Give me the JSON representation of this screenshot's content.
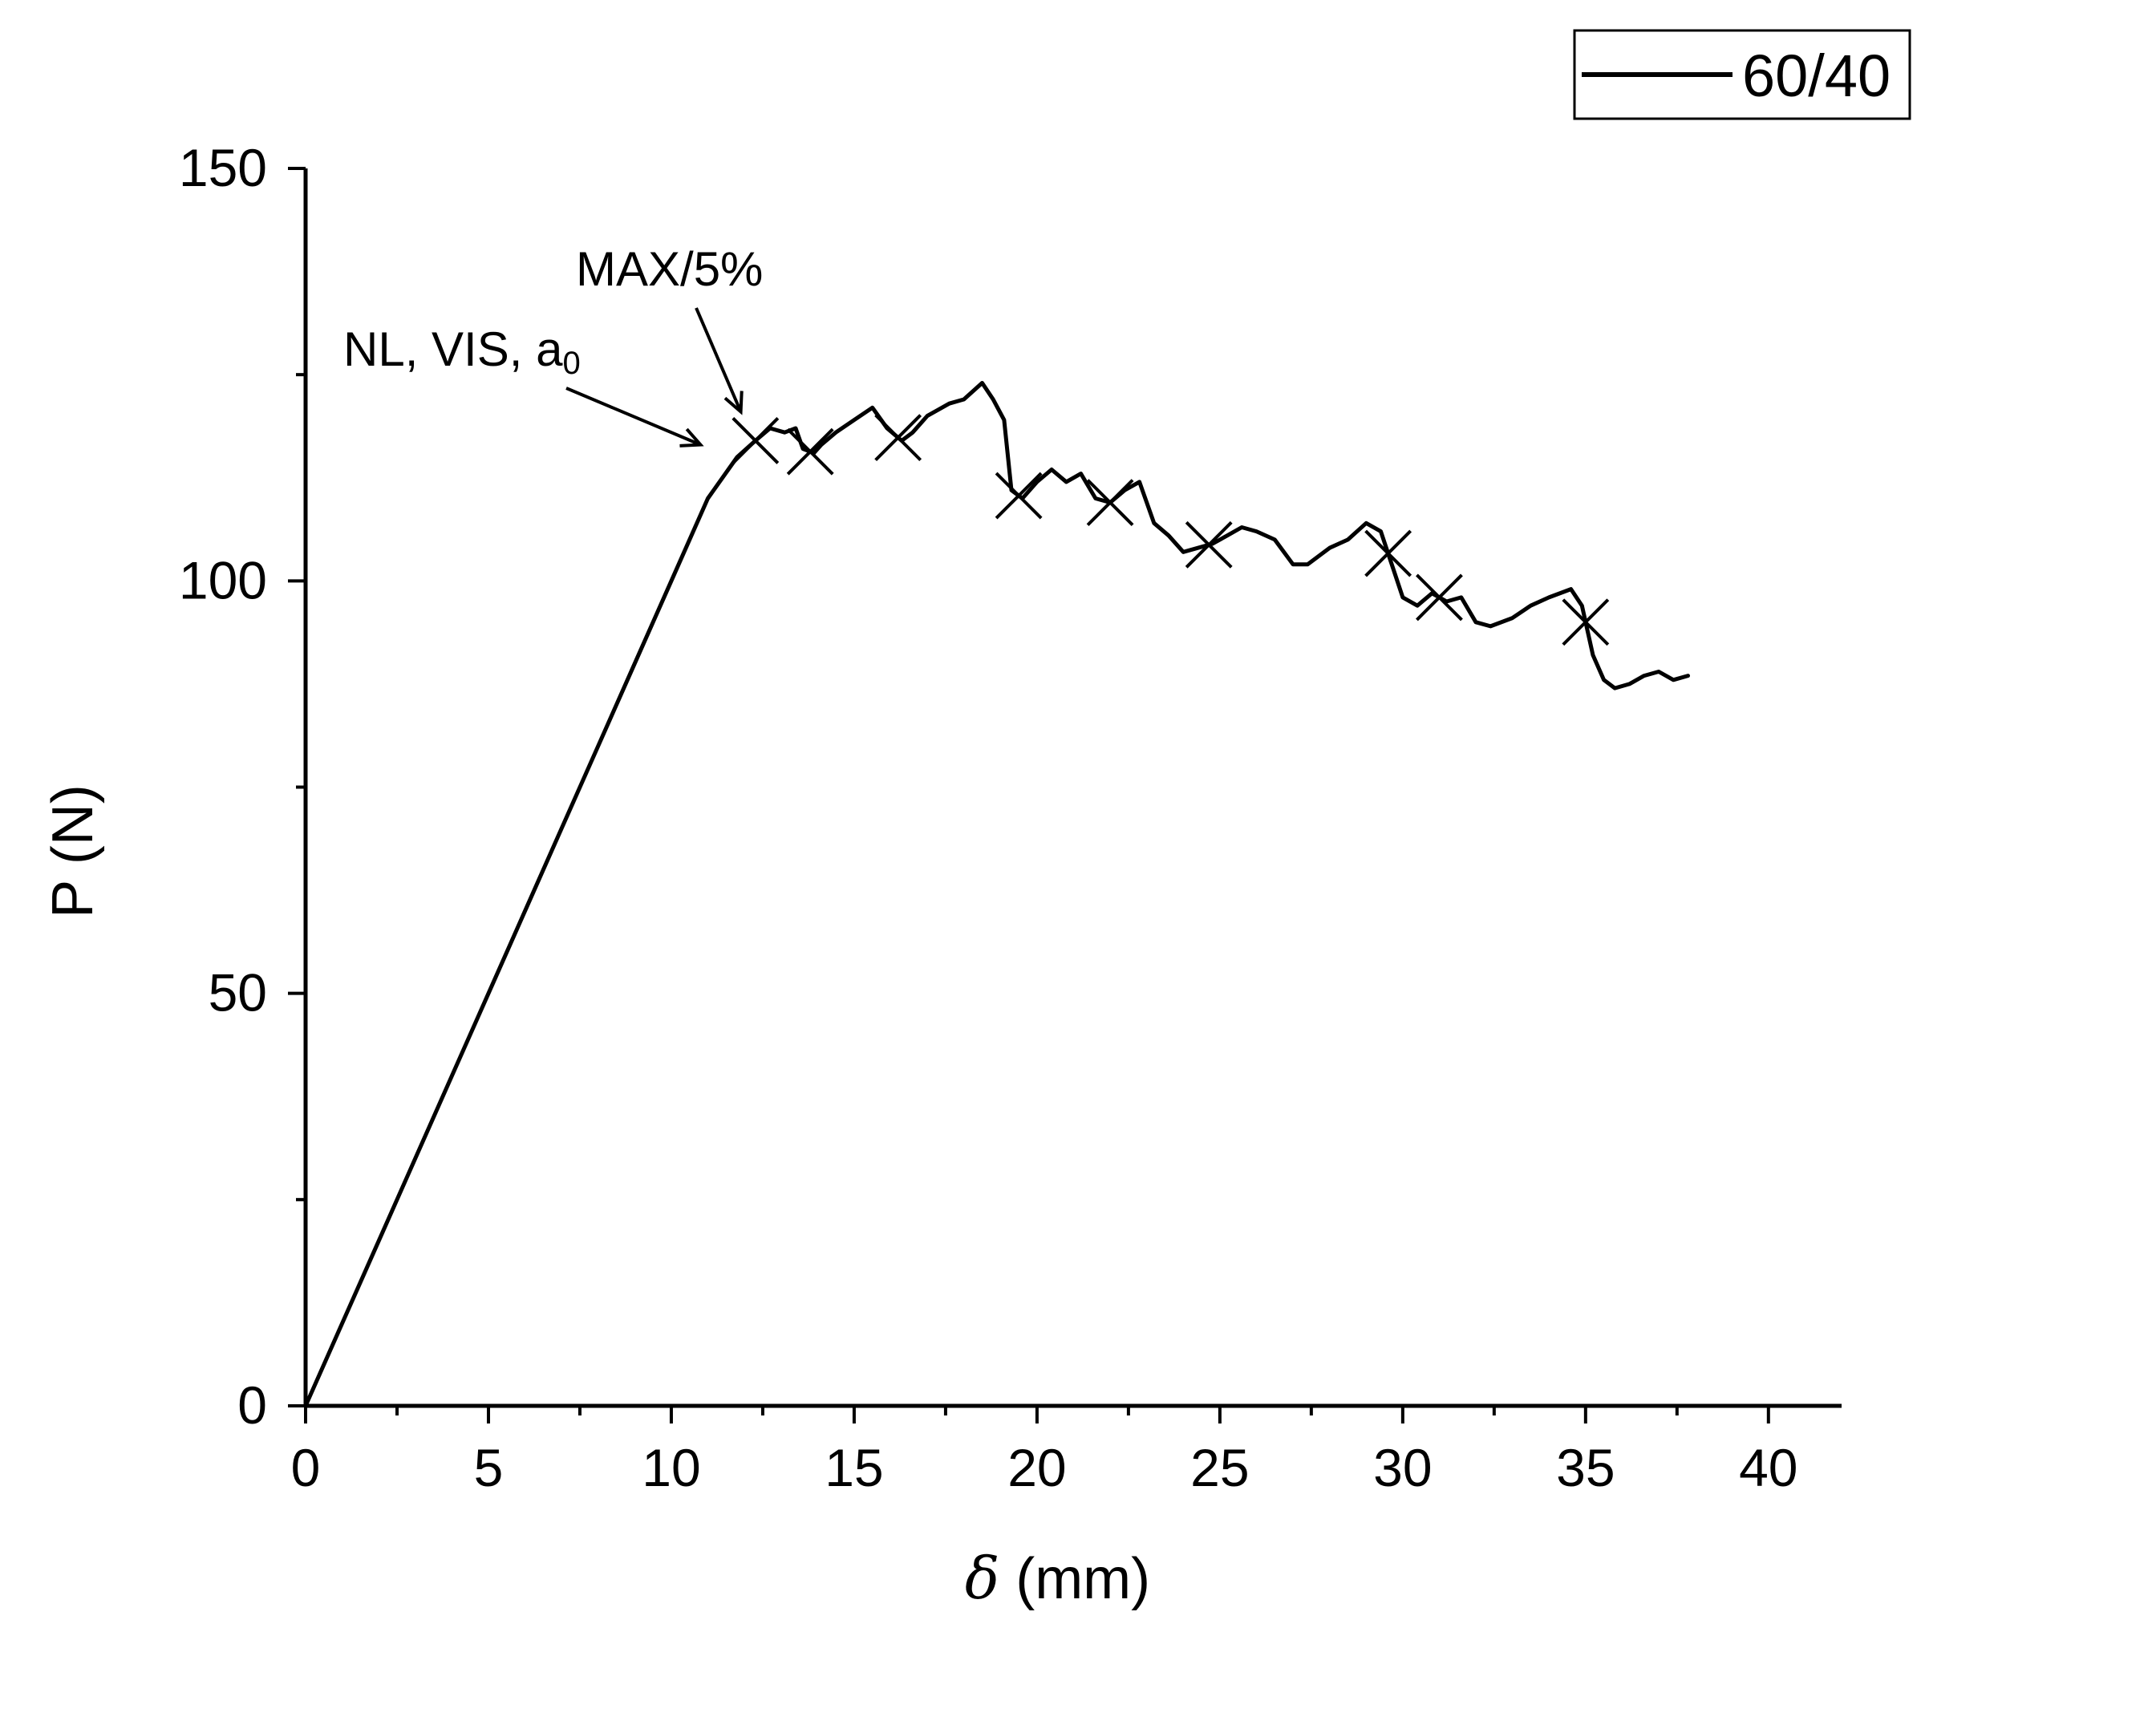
{
  "chart_data": {
    "type": "line",
    "title": "",
    "xlabel_symbol": "δ",
    "xlabel_unit": "(mm)",
    "ylabel": "P (N)",
    "xlim": [
      0,
      42
    ],
    "ylim": [
      0,
      150
    ],
    "xticks": [
      0,
      5,
      10,
      15,
      20,
      25,
      30,
      35,
      40
    ],
    "yticks": [
      0,
      50,
      100,
      150
    ],
    "legend": {
      "position": "top-right",
      "entries": [
        "60/40"
      ]
    },
    "series": [
      {
        "name": "60/40",
        "x": [
          0,
          1.0,
          2.0,
          3.0,
          4.0,
          5.0,
          6.0,
          7.0,
          8.0,
          9.0,
          10.0,
          11.0,
          11.8,
          12.3,
          12.7,
          13.1,
          13.4,
          13.6,
          13.9,
          14.1,
          14.5,
          15.0,
          15.5,
          15.9,
          16.3,
          16.6,
          17.0,
          17.6,
          18.0,
          18.5,
          18.8,
          19.1,
          19.3,
          19.6,
          20.0,
          20.4,
          20.8,
          21.2,
          21.6,
          22.0,
          22.4,
          22.8,
          23.2,
          23.6,
          24.0,
          24.4,
          24.8,
          25.2,
          25.6,
          26.0,
          26.5,
          27.0,
          27.4,
          28.0,
          28.5,
          29.0,
          29.4,
          29.7,
          30.0,
          30.4,
          30.8,
          31.2,
          31.6,
          32.0,
          32.4,
          33.0,
          33.5,
          34.0,
          34.6,
          34.9,
          35.2,
          35.5,
          35.8,
          36.2,
          36.6,
          37.0,
          37.4,
          37.8
        ],
        "y": [
          0,
          10,
          20,
          30,
          40,
          50,
          60,
          70,
          80,
          90,
          100,
          110,
          115,
          117,
          118.5,
          118,
          118.5,
          116,
          115.5,
          116.5,
          118,
          119.5,
          121,
          118.5,
          117,
          118,
          120,
          121.5,
          122,
          124,
          122,
          119.5,
          111,
          110,
          112,
          113.5,
          112,
          113,
          110,
          109.5,
          111,
          112,
          107,
          105.5,
          103.5,
          104,
          104.5,
          105.5,
          106.5,
          106,
          105,
          102,
          102,
          104,
          105,
          107,
          106,
          102,
          98,
          97,
          98.5,
          97.5,
          98,
          95,
          94.5,
          95.5,
          97,
          98,
          99,
          97,
          91,
          88,
          87,
          87.5,
          88.5,
          89,
          88,
          88.5
        ]
      }
    ],
    "markers_x": [
      12.3,
      13.8,
      16.2,
      19.5,
      22.0,
      24.7,
      29.6,
      31.0,
      35.0
    ],
    "annotations": [
      {
        "text": "MAX/5%",
        "target_x": 11.9,
        "target_y": 120.5
      },
      {
        "text_main": "NL, VIS, a",
        "text_sub": "0",
        "target_x": 10.8,
        "target_y": 116.5
      }
    ]
  }
}
